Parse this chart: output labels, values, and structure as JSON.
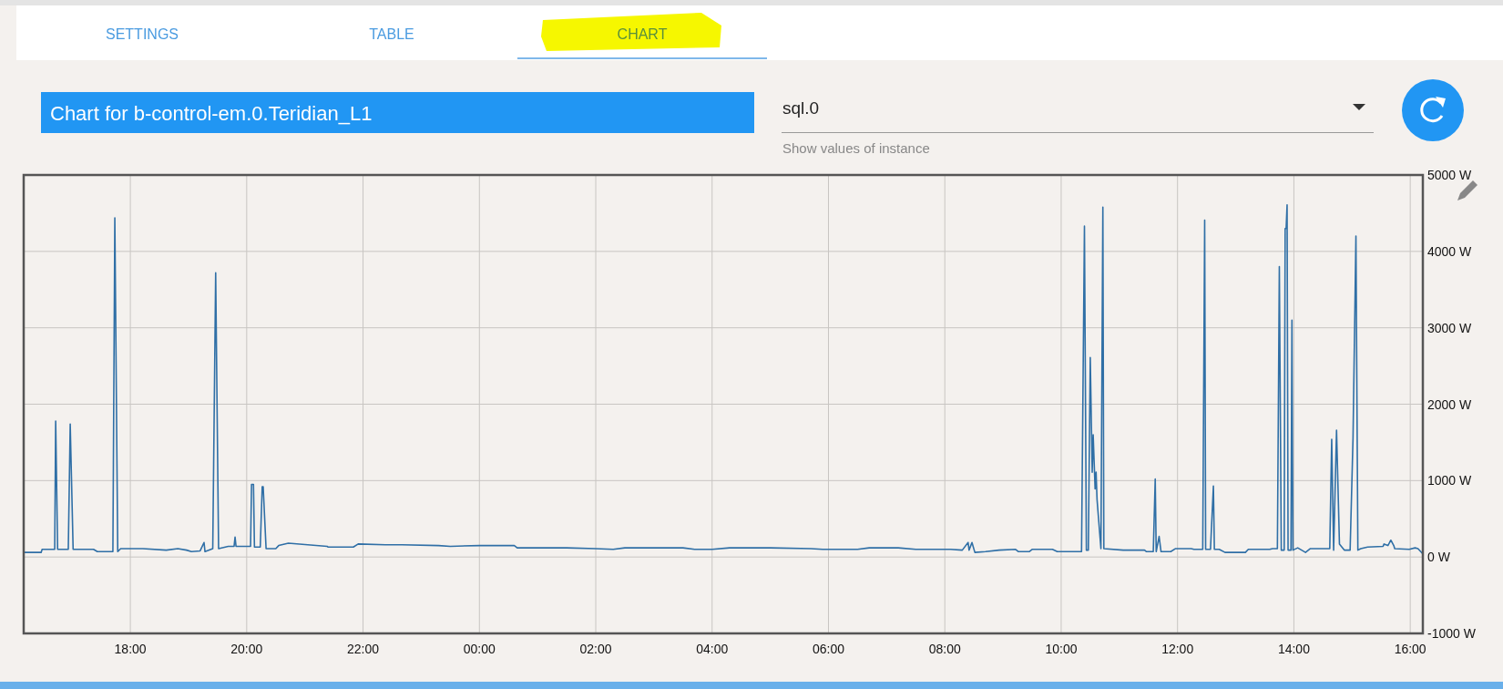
{
  "chart_data": {
    "type": "line",
    "title": "Chart for b-control-em.0.Teridian_L1",
    "annotations": [
      "SETTINGS",
      "TABLE",
      "CHART",
      "sql.0",
      "Show values of instance"
    ],
    "x": [
      "2000-01-01T16:10",
      "2000-01-01T16:28",
      "2000-01-01T16:29",
      "2000-01-01T16:42",
      "2000-01-01T16:43",
      "2000-01-01T16:45",
      "2000-01-01T16:56",
      "2000-01-01T16:58",
      "2000-01-01T17:01",
      "2000-01-01T17:22",
      "2000-01-01T17:26",
      "2000-01-01T17:42",
      "2000-01-01T17:44",
      "2000-01-01T17:47",
      "2000-01-01T17:50",
      "2000-01-01T18:13",
      "2000-01-01T18:37",
      "2000-01-01T18:49",
      "2000-01-01T18:58",
      "2000-01-01T19:03",
      "2000-01-01T19:12",
      "2000-01-01T19:16",
      "2000-01-01T19:17",
      "2000-01-01T19:25",
      "2000-01-01T19:28",
      "2000-01-01T19:31",
      "2000-01-01T19:41",
      "2000-01-01T19:47",
      "2000-01-01T19:48",
      "2000-01-01T19:49",
      "2000-01-01T20:04",
      "2000-01-01T20:05",
      "2000-01-01T20:07",
      "2000-01-01T20:08",
      "2000-01-01T20:14",
      "2000-01-01T20:16",
      "2000-01-01T20:17",
      "2000-01-01T20:20",
      "2000-01-01T20:30",
      "2000-01-01T20:33",
      "2000-01-01T20:43",
      "2000-01-01T21:23",
      "2000-01-01T21:24",
      "2000-01-01T21:50",
      "2000-01-01T21:55",
      "2000-01-01T22:23",
      "2000-01-01T22:40",
      "2000-01-01T23:18",
      "2000-01-01T23:30",
      "2000-01-02T00:00",
      "2000-01-02T00:36",
      "2000-01-02T00:39",
      "2000-01-02T01:30",
      "2000-01-02T02:00",
      "2000-01-02T02:18",
      "2000-01-02T02:30",
      "2000-01-02T03:30",
      "2000-01-02T03:42",
      "2000-01-02T04:00",
      "2000-01-02T04:18",
      "2000-01-02T05:00",
      "2000-01-02T05:42",
      "2000-01-02T05:54",
      "2000-01-02T06:30",
      "2000-01-02T06:42",
      "2000-01-02T07:12",
      "2000-01-02T07:30",
      "2000-01-02T08:06",
      "2000-01-02T08:18",
      "2000-01-02T08:24",
      "2000-01-02T08:25",
      "2000-01-02T08:28",
      "2000-01-02T08:31",
      "2000-01-02T08:42",
      "2000-01-02T08:56",
      "2000-01-02T09:13",
      "2000-01-02T09:16",
      "2000-01-02T09:27",
      "2000-01-02T09:30",
      "2000-01-02T09:51",
      "2000-01-02T09:56",
      "2000-01-02T10:21",
      "2000-01-02T10:24",
      "2000-01-02T10:26",
      "2000-01-02T10:28",
      "2000-01-02T10:30",
      "2000-01-02T10:32",
      "2000-01-02T10:33",
      "2000-01-02T10:35",
      "2000-01-02T10:36",
      "2000-01-02T10:37",
      "2000-01-02T10:41",
      "2000-01-02T10:43",
      "2000-01-02T10:44",
      "2000-01-02T11:04",
      "2000-01-02T11:26",
      "2000-01-02T11:28",
      "2000-01-02T11:35",
      "2000-01-02T11:37",
      "2000-01-02T11:38",
      "2000-01-02T11:41",
      "2000-01-02T11:43",
      "2000-01-02T11:53",
      "2000-01-02T11:58",
      "2000-01-02T12:14",
      "2000-01-02T12:17",
      "2000-01-02T12:26",
      "2000-01-02T12:28",
      "2000-01-02T12:29",
      "2000-01-02T12:34",
      "2000-01-02T12:37",
      "2000-01-02T12:38",
      "2000-01-02T12:43",
      "2000-01-02T12:49",
      "2000-01-02T13:10",
      "2000-01-02T13:13",
      "2000-01-02T13:35",
      "2000-01-02T13:38",
      "2000-01-02T13:43",
      "2000-01-02T13:45",
      "2000-01-02T13:47",
      "2000-01-02T13:50",
      "2000-01-02T13:51",
      "2000-01-02T13:52",
      "2000-01-02T13:53",
      "2000-01-02T13:54",
      "2000-01-02T13:57",
      "2000-01-02T13:58",
      "2000-01-02T13:59",
      "2000-01-02T14:04",
      "2000-01-02T14:12",
      "2000-01-02T14:17",
      "2000-01-02T14:37",
      "2000-01-02T14:39",
      "2000-01-02T14:41",
      "2000-01-02T14:44",
      "2000-01-02T14:47",
      "2000-01-02T14:52",
      "2000-01-02T14:58",
      "2000-01-02T15:01",
      "2000-01-02T15:04",
      "2000-01-02T15:06",
      "2000-01-02T15:09",
      "2000-01-02T15:16",
      "2000-01-02T15:32",
      "2000-01-02T15:33",
      "2000-01-02T15:37",
      "2000-01-02T15:40",
      "2000-01-02T15:43",
      "2000-01-02T15:44",
      "2000-01-02T15:59",
      "2000-01-02T16:05",
      "2000-01-02T16:08",
      "2000-01-02T16:13"
    ],
    "series": [
      {
        "color": "#2f6fa6",
        "values": [
          60,
          60,
          100,
          100,
          1780,
          100,
          100,
          1740,
          100,
          100,
          70,
          70,
          4440,
          70,
          110,
          110,
          90,
          110,
          90,
          70,
          80,
          190,
          70,
          110,
          3720,
          110,
          140,
          140,
          260,
          140,
          140,
          950,
          950,
          130,
          130,
          920,
          920,
          110,
          110,
          150,
          180,
          140,
          130,
          130,
          170,
          160,
          160,
          150,
          140,
          150,
          150,
          120,
          120,
          110,
          100,
          120,
          120,
          100,
          100,
          120,
          120,
          110,
          100,
          100,
          120,
          120,
          100,
          100,
          90,
          190,
          90,
          190,
          60,
          70,
          90,
          100,
          70,
          70,
          100,
          100,
          70,
          70,
          4330,
          90,
          90,
          2610,
          1110,
          1600,
          890,
          1110,
          750,
          110,
          4580,
          110,
          90,
          90,
          70,
          70,
          1020,
          70,
          270,
          70,
          70,
          110,
          110,
          100,
          100,
          4410,
          100,
          100,
          930,
          100,
          100,
          60,
          60,
          100,
          100,
          110,
          110,
          3800,
          90,
          90,
          4300,
          4300,
          4610,
          90,
          90,
          3100,
          90,
          120,
          60,
          110,
          110,
          1540,
          90,
          1660,
          170,
          90,
          90,
          1560,
          4200,
          90,
          110,
          130,
          140,
          170,
          150,
          220,
          150,
          110,
          100,
          120,
          110,
          40
        ]
      }
    ],
    "xlim": [
      "2000-01-01T16:10",
      "2000-01-02T16:13"
    ],
    "xticks": [
      {
        "value": "2000-01-01T18:00",
        "label": "18:00"
      },
      {
        "value": "2000-01-01T20:00",
        "label": "20:00"
      },
      {
        "value": "2000-01-01T22:00",
        "label": "22:00"
      },
      {
        "value": "2000-01-02T00:00",
        "label": "00:00"
      },
      {
        "value": "2000-01-02T02:00",
        "label": "02:00"
      },
      {
        "value": "2000-01-02T04:00",
        "label": "04:00"
      },
      {
        "value": "2000-01-02T06:00",
        "label": "06:00"
      },
      {
        "value": "2000-01-02T08:00",
        "label": "08:00"
      },
      {
        "value": "2000-01-02T10:00",
        "label": "10:00"
      },
      {
        "value": "2000-01-02T12:00",
        "label": "12:00"
      },
      {
        "value": "2000-01-02T14:00",
        "label": "14:00"
      },
      {
        "value": "2000-01-02T16:00",
        "label": "16:00"
      }
    ],
    "ylim": [
      -1000,
      5000
    ],
    "yticks": [
      {
        "value": -1000,
        "label": "-1000 W"
      },
      {
        "value": 0,
        "label": "0 W"
      },
      {
        "value": 1000,
        "label": "1000 W"
      },
      {
        "value": 2000,
        "label": "2000 W"
      },
      {
        "value": 3000,
        "label": "3000 W"
      },
      {
        "value": 4000,
        "label": "4000 W"
      },
      {
        "value": 5000,
        "label": "5000 W"
      }
    ],
    "grid": true,
    "marker": "none",
    "line_style": "solid"
  }
}
